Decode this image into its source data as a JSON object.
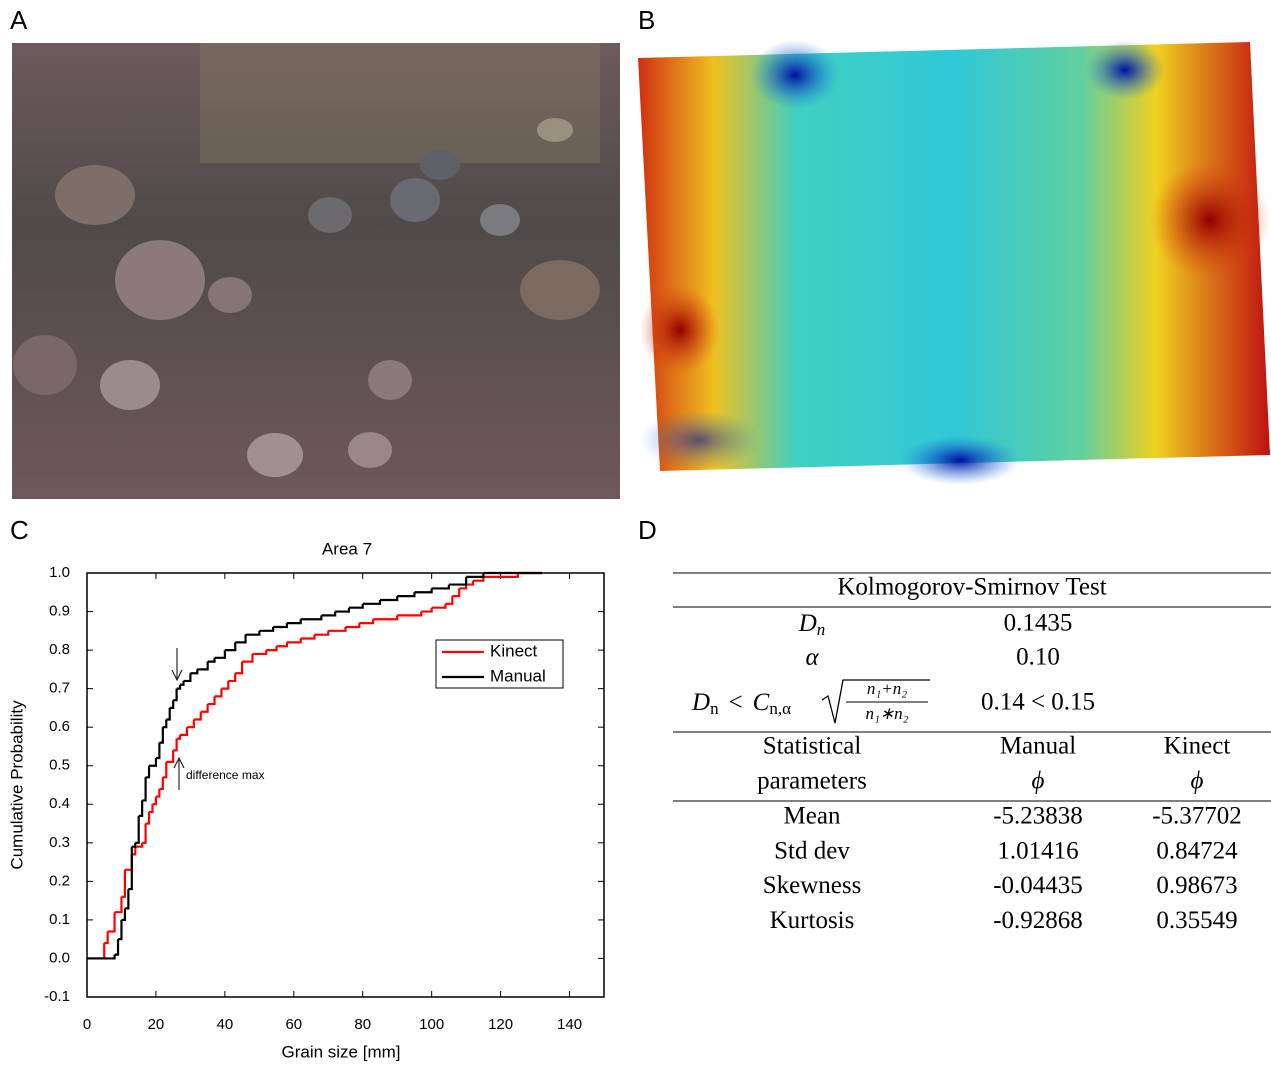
{
  "panels": [
    "A",
    "B",
    "C",
    "D"
  ],
  "chart_data": {
    "type": "step",
    "title": "Area 7",
    "xlabel": "Grain size [mm]",
    "ylabel": "Cumulative Probability",
    "xlim": [
      0,
      150
    ],
    "xticks": [
      0,
      20,
      40,
      60,
      80,
      100,
      120,
      140
    ],
    "ylim": [
      -0.1,
      1.0
    ],
    "yticks": [
      -0.1,
      {
        "value": 0,
        "label": "0.0"
      },
      0.1,
      0.2,
      0.3,
      0.4,
      0.5,
      0.6,
      0.7,
      0.8,
      0.9,
      {
        "value": 1,
        "label": "1.0"
      }
    ],
    "legend": "upper right",
    "annotation": "difference max",
    "series": [
      {
        "name": "Kinect",
        "color": "#ff0000",
        "x": [
          0,
          5,
          5,
          6,
          8,
          10,
          11,
          13,
          14,
          16,
          17,
          18,
          19,
          20,
          21,
          22,
          23,
          25,
          26,
          27,
          29,
          31,
          33,
          35,
          37,
          39,
          41,
          43,
          45,
          48,
          52,
          55,
          58,
          62,
          66,
          70,
          75,
          79,
          83,
          90,
          97,
          100,
          104,
          106,
          108,
          110,
          112,
          115,
          125,
          132
        ],
        "values": [
          0,
          0,
          0.04,
          0.07,
          0.12,
          0.16,
          0.23,
          0.27,
          0.29,
          0.3,
          0.35,
          0.38,
          0.4,
          0.42,
          0.44,
          0.47,
          0.51,
          0.54,
          0.57,
          0.58,
          0.6,
          0.62,
          0.64,
          0.66,
          0.68,
          0.7,
          0.72,
          0.74,
          0.77,
          0.79,
          0.8,
          0.81,
          0.82,
          0.83,
          0.84,
          0.85,
          0.86,
          0.87,
          0.88,
          0.89,
          0.9,
          0.91,
          0.92,
          0.94,
          0.96,
          0.97,
          0.98,
          0.99,
          1.0,
          1.0
        ]
      },
      {
        "name": "Manual",
        "color": "#000000",
        "x": [
          0,
          7,
          8,
          9,
          10,
          11,
          12,
          13,
          14,
          15,
          16,
          17,
          18,
          20,
          21,
          22,
          23,
          24,
          25,
          26,
          27,
          28,
          30,
          32,
          35,
          37,
          40,
          43,
          46,
          50,
          54,
          58,
          62,
          68,
          72,
          76,
          80,
          85,
          90,
          95,
          100,
          105,
          110,
          115,
          132
        ],
        "values": [
          0,
          0,
          0.01,
          0.05,
          0.1,
          0.13,
          0.18,
          0.29,
          0.3,
          0.37,
          0.41,
          0.47,
          0.5,
          0.52,
          0.56,
          0.6,
          0.62,
          0.65,
          0.67,
          0.7,
          0.71,
          0.72,
          0.74,
          0.75,
          0.77,
          0.78,
          0.8,
          0.82,
          0.84,
          0.85,
          0.86,
          0.87,
          0.88,
          0.89,
          0.9,
          0.91,
          0.92,
          0.93,
          0.94,
          0.95,
          0.96,
          0.97,
          0.99,
          1.0,
          1.0
        ]
      }
    ]
  },
  "table": {
    "title": "Kolmogorov-Smirnov Test",
    "ks_rows": [
      {
        "label": "D",
        "sub": "n",
        "value": "0.1435"
      },
      {
        "label": "α",
        "value": "0.10"
      }
    ],
    "formula": {
      "lhs": "D",
      "lhs_sub": "n",
      "op": "<",
      "c": "C",
      "c_sub": "n,α",
      "num": "n₁+n₂",
      "den": "n₁∗n₂",
      "value": "0.14 < 0.15"
    },
    "header": [
      [
        "Statistical",
        "parameters"
      ],
      [
        "Manual",
        "ϕ"
      ],
      [
        "Kinect",
        "ϕ"
      ]
    ],
    "rows": [
      [
        "Mean",
        "-5.23838",
        "-5.37702"
      ],
      [
        "Std dev",
        "1.01416",
        "0.84724"
      ],
      [
        "Skewness",
        "-0.04435",
        "0.98673"
      ],
      [
        "Kurtosis",
        "-0.92868",
        "0.35549"
      ]
    ]
  }
}
